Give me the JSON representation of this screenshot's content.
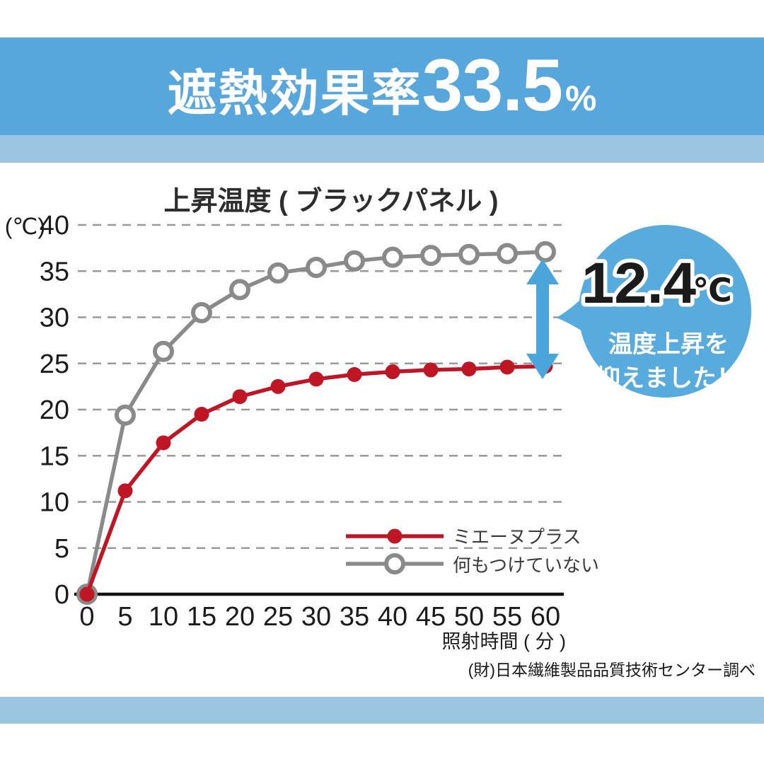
{
  "header": {
    "label": "遮熱効果率",
    "value": "33.5",
    "unit": "%",
    "band_color": "#57a7dc",
    "light_band_color": "#9cc6e0"
  },
  "footnote": "(財)日本繊維製品品質技術センター調べ",
  "chart_data": {
    "type": "line",
    "title": "上昇温度 ( ブラックパネル )",
    "y_unit_label": "(℃)",
    "xlabel": "照射時間 ( 分 )",
    "x": [
      0,
      5,
      10,
      15,
      20,
      25,
      30,
      35,
      40,
      45,
      50,
      55,
      60
    ],
    "x_tick_labels": [
      "0",
      "5",
      "10",
      "15",
      "20",
      "25",
      "30",
      "35",
      "40",
      "45",
      "50",
      "55",
      "60"
    ],
    "ylim": [
      0,
      40
    ],
    "y_ticks": [
      0,
      5,
      10,
      15,
      20,
      25,
      30,
      35,
      40
    ],
    "grid": "horizontal-dashed",
    "legend_position": "inside-lower-right",
    "series": [
      {
        "name": "ミエーヌプラス",
        "marker": "filled-circle",
        "color": "#bf1625",
        "values": [
          0,
          11.2,
          16.4,
          19.5,
          21.4,
          22.5,
          23.3,
          23.8,
          24.1,
          24.3,
          24.4,
          24.6,
          24.7
        ]
      },
      {
        "name": "何もつけていない",
        "marker": "open-circle",
        "color": "#8a8a8a",
        "values": [
          0,
          19.4,
          26.3,
          30.5,
          33.0,
          34.8,
          35.4,
          36.1,
          36.5,
          36.7,
          36.8,
          36.9,
          37.1
        ]
      }
    ],
    "annotation": {
      "value": "12.4",
      "unit": "℃",
      "text_line1": "温度上昇を",
      "text_line2": "抑えました！",
      "bubble_color": "#58abdd",
      "arrow_color": "#4aa6da"
    }
  }
}
